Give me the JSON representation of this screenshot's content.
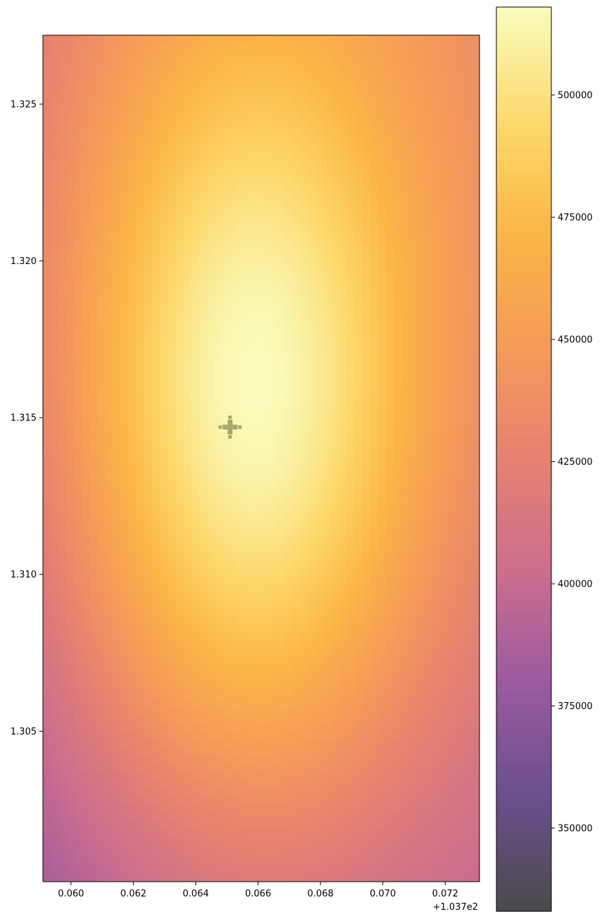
{
  "chart_data": {
    "type": "heatmap",
    "title": "",
    "xlabel": "",
    "ylabel": "",
    "x_offset_label": "+1.037e2",
    "xlim": [
      0.0591,
      0.0731
    ],
    "ylim": [
      1.3002,
      1.3272
    ],
    "x_ticks": [
      {
        "value": 0.06,
        "label": "0.060"
      },
      {
        "value": 0.062,
        "label": "0.062"
      },
      {
        "value": 0.064,
        "label": "0.064"
      },
      {
        "value": 0.066,
        "label": "0.066"
      },
      {
        "value": 0.068,
        "label": "0.068"
      },
      {
        "value": 0.07,
        "label": "0.070"
      },
      {
        "value": 0.072,
        "label": "0.072"
      }
    ],
    "y_ticks": [
      {
        "value": 1.305,
        "label": "1.305"
      },
      {
        "value": 1.31,
        "label": "1.310"
      },
      {
        "value": 1.315,
        "label": "1.315"
      },
      {
        "value": 1.32,
        "label": "1.320"
      },
      {
        "value": 1.325,
        "label": "1.325"
      }
    ],
    "grid": false,
    "colormap": "inferno-like",
    "color_stops": [
      "#4a4a4a",
      "#6a4f8e",
      "#9a5aa0",
      "#cc6d8e",
      "#e58271",
      "#f59b58",
      "#fcb646",
      "#fdd96e",
      "#f8fcbc"
    ],
    "value_range": [
      333000,
      518000
    ],
    "peak": {
      "x": 0.0657,
      "y": 1.3152,
      "value": 518000
    },
    "marker": {
      "x": 0.0651,
      "y": 1.3147,
      "color": "#a6a86a",
      "shape": "cross"
    },
    "colorbar": {
      "ticks": [
        {
          "value": 350000,
          "label": "350000"
        },
        {
          "value": 375000,
          "label": "375000"
        },
        {
          "value": 400000,
          "label": "400000"
        },
        {
          "value": 425000,
          "label": "425000"
        },
        {
          "value": 450000,
          "label": "450000"
        },
        {
          "value": 475000,
          "label": "475000"
        },
        {
          "value": 500000,
          "label": "500000"
        }
      ]
    }
  }
}
